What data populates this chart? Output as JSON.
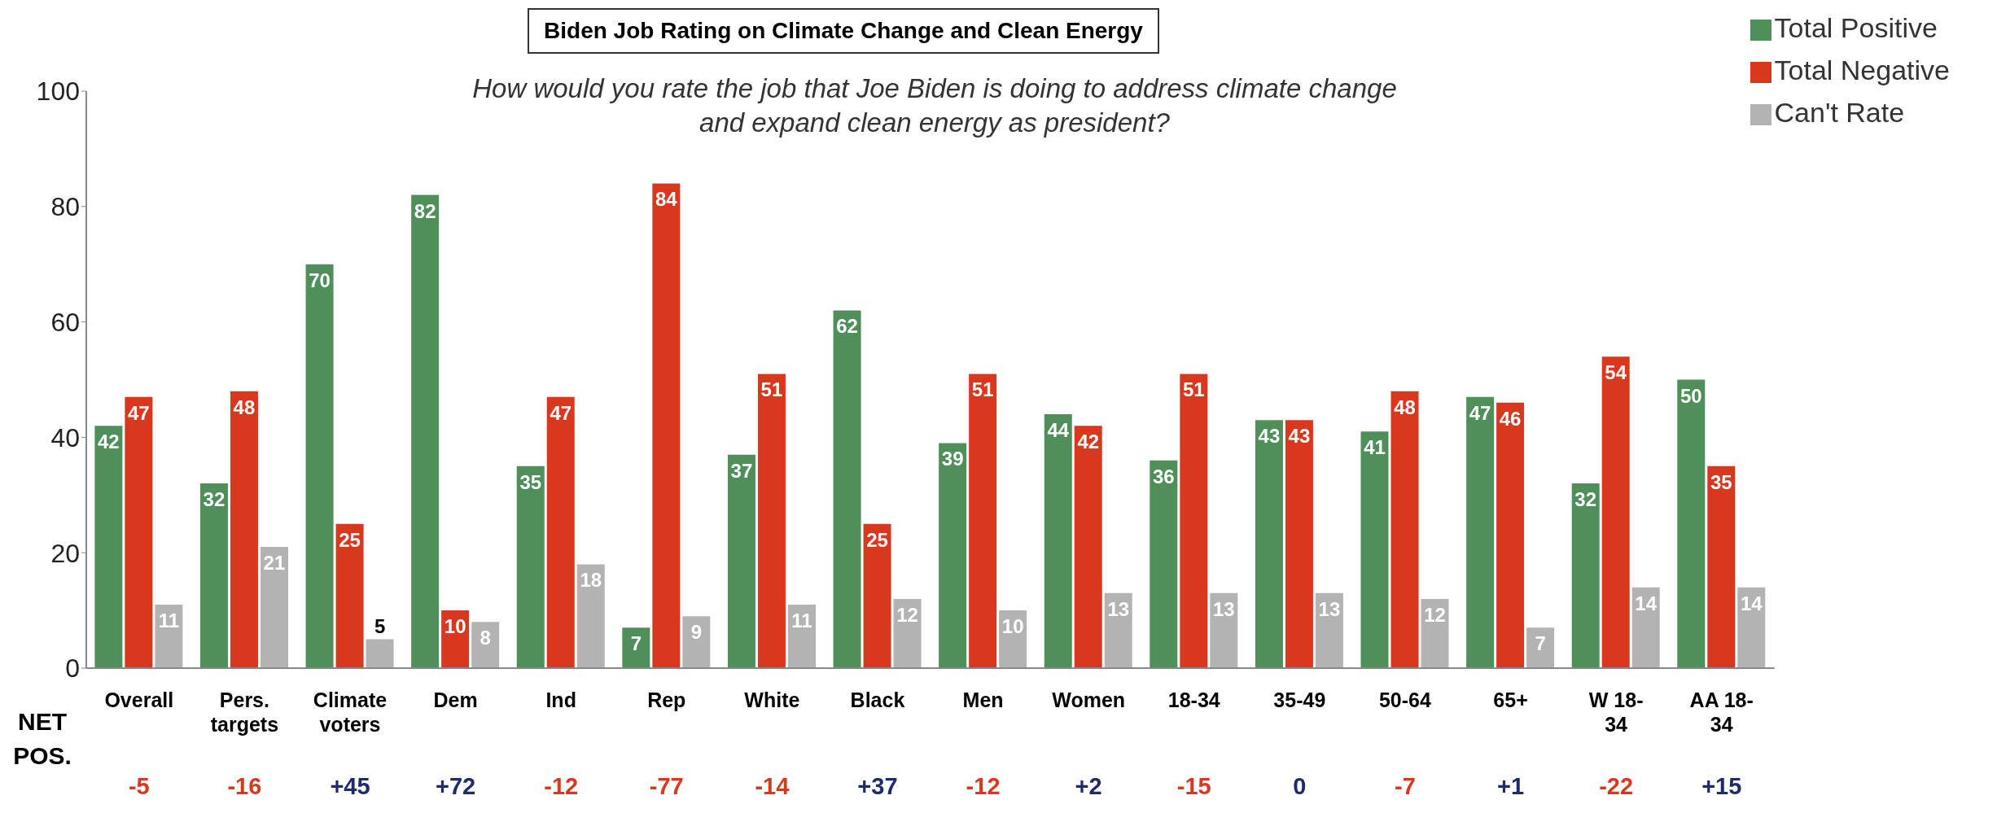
{
  "chart_data": {
    "type": "bar",
    "title": "Biden Job Rating on Climate Change and Clean Energy",
    "subtitle": "How would you rate the job that Joe Biden is doing to address climate change and expand clean energy as president?",
    "categories": [
      "Overall",
      "Pers. targets",
      "Climate voters",
      "Dem",
      "Ind",
      "Rep",
      "White",
      "Black",
      "Men",
      "Women",
      "18-34",
      "35-49",
      "50-64",
      "65+",
      "W 18-34",
      "AA 18-34"
    ],
    "series": [
      {
        "name": "Total Positive",
        "color": "#4e8f5a",
        "values": [
          42,
          32,
          70,
          82,
          35,
          7,
          37,
          62,
          39,
          44,
          36,
          43,
          41,
          47,
          32,
          50
        ]
      },
      {
        "name": "Total Negative",
        "color": "#d9381e",
        "values": [
          47,
          48,
          25,
          10,
          47,
          84,
          51,
          25,
          51,
          42,
          51,
          43,
          48,
          46,
          54,
          35
        ]
      },
      {
        "name": "Can't Rate",
        "color": "#b3b3b3",
        "values": [
          11,
          21,
          5,
          8,
          18,
          9,
          11,
          12,
          10,
          13,
          13,
          13,
          12,
          7,
          14,
          14
        ]
      }
    ],
    "ylim": [
      0,
      100
    ],
    "yticks": [
      0,
      20,
      40,
      60,
      80,
      100
    ],
    "grid": false,
    "legend": "top right",
    "data_labels": true,
    "annotations": [
      "NET POS.",
      "-5",
      "-16",
      "+45",
      "+72",
      "-12",
      "-77",
      "-14",
      "+37",
      "-12",
      "+2",
      "-15",
      "0",
      "-7",
      "+1",
      "-22",
      "+15"
    ]
  }
}
